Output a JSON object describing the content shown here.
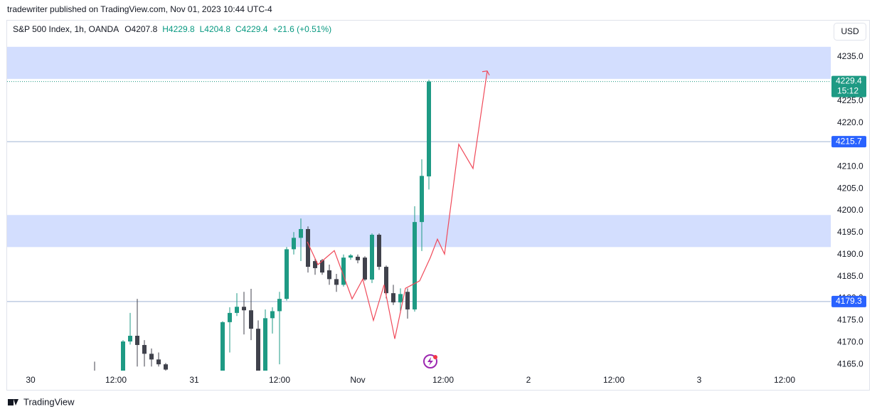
{
  "header": "tradewriter published on TradingView.com, Nov 01, 2023 10:44 UTC-4",
  "footer": "TradingView",
  "currency": "USD",
  "chart_data": {
    "type": "candlestick",
    "title": "S&P 500 Index, 1h, OANDA",
    "ohlc": [
      "O4207.8",
      "H4229.8",
      "L4204.8",
      "C4229.4",
      "+21.6 (+0.51%)"
    ],
    "up_color": "#1e9a84",
    "down_color": "#40424c",
    "x": [
      9,
      13,
      14,
      15,
      16,
      17,
      18,
      19,
      27,
      28,
      29,
      30,
      31,
      32,
      33,
      34,
      35,
      36,
      37,
      38,
      39,
      40,
      41,
      42,
      43,
      44,
      45,
      46,
      47,
      48,
      49,
      50,
      51,
      52,
      53,
      54,
      55,
      56
    ],
    "open": [
      4162,
      4163,
      4170.2,
      4171.5,
      4169.4,
      4167.4,
      4166.1,
      4165.0,
      4163,
      4174.6,
      4176.7,
      4178.1,
      4177.3,
      4173.1,
      4162,
      4175.5,
      4177.1,
      4179.9,
      4191.2,
      4193.8,
      4195.8,
      4188.5,
      4188.7,
      4186.4,
      4184.4,
      4183.1,
      4189.3,
      4189.5,
      4189.3,
      4184.3,
      4194.5,
      4187.2,
      4181.2,
      4179.1,
      4181.5,
      4177.5,
      4197.4,
      4207.8
    ],
    "high": [
      4165.6,
      4170.5,
      4176.7,
      4179.9,
      4170.5,
      4168.6,
      4167.7,
      4165.3,
      4174.8,
      4178.0,
      4181.2,
      4181.5,
      4182.2,
      4175.0,
      4177.5,
      4178.0,
      4181.5,
      4191.7,
      4195.1,
      4198.2,
      4196.4,
      4189.0,
      4189.0,
      4187.7,
      4185.6,
      4190.0,
      4190.1,
      4190.0,
      4189.6,
      4194.8,
      4194.8,
      4187.5,
      4183.1,
      4182.3,
      4182.3,
      4201.0,
      4211.7,
      4229.8
    ],
    "low": [
      4160,
      4162,
      4169.5,
      4164.5,
      4164.5,
      4164.5,
      4164.5,
      4163,
      4162,
      4167.7,
      4176.0,
      4171.8,
      4170.5,
      4161,
      4161,
      4172,
      4165,
      4179.5,
      4190,
      4188.5,
      4185.9,
      4185.4,
      4185.4,
      4183.1,
      4181.5,
      4182.7,
      4188.8,
      4188.0,
      4184.0,
      4183.5,
      4186.5,
      4180.0,
      4178.5,
      4176.7,
      4175.4,
      4177.0,
      4190.8,
      4204.8
    ],
    "close": [
      4161,
      4170.2,
      4171.5,
      4169.4,
      4167.4,
      4166.1,
      4165.0,
      4163.8,
      4174.6,
      4176.7,
      4178.1,
      4177.3,
      4173.1,
      4162,
      4175.5,
      4177.1,
      4179.9,
      4191.2,
      4193.8,
      4195.8,
      4187.2,
      4186.9,
      4185.9,
      4184.4,
      4183.1,
      4189.3,
      4189.8,
      4188.7,
      4184.3,
      4194.5,
      4187.2,
      4181.2,
      4179.1,
      4181.0,
      4177.5,
      4197.4,
      4207.9,
      4229.4
    ],
    "xlim": [
      -3.3,
      112.5
    ],
    "xticks": [
      {
        "value": 0,
        "label": "30"
      },
      {
        "value": 12,
        "label": "12:00"
      },
      {
        "value": 23,
        "label": "31"
      },
      {
        "value": 35,
        "label": "12:00"
      },
      {
        "value": 46,
        "label": "Nov"
      },
      {
        "value": 58,
        "label": "12:00"
      },
      {
        "value": 70,
        "label": "2"
      },
      {
        "value": 82,
        "label": "12:00"
      },
      {
        "value": 94,
        "label": "3"
      },
      {
        "value": 106,
        "label": "12:00"
      }
    ],
    "ylim": [
      4163.4,
      4243.1
    ],
    "yticks": [
      {
        "value": 4165,
        "label": "4165.0"
      },
      {
        "value": 4170,
        "label": "4170.0"
      },
      {
        "value": 4175,
        "label": "4175.0"
      },
      {
        "value": 4180,
        "label": "4180.0"
      },
      {
        "value": 4185,
        "label": "4185.0"
      },
      {
        "value": 4190,
        "label": "4190.0"
      },
      {
        "value": 4195,
        "label": "4195.0"
      },
      {
        "value": 4200,
        "label": "4200.0"
      },
      {
        "value": 4205,
        "label": "4205.0"
      },
      {
        "value": 4210,
        "label": "4210.0"
      },
      {
        "value": 4220,
        "label": "4220.0"
      },
      {
        "value": 4225,
        "label": "4225.0"
      },
      {
        "value": 4235,
        "label": "4235.0"
      }
    ],
    "zones": [
      [
        4230.0,
        4237.3
      ],
      [
        4191.7,
        4199.0
      ]
    ],
    "zone_color": "#d3defe",
    "levels": [
      4215.7,
      4179.3
    ],
    "level_color": "#9fb3d3",
    "last_price": 4229.4,
    "countdown": "15:12",
    "drawing": {
      "color": "#f04a5a",
      "x": [
        38.9,
        40.4,
        42.7,
        45.2,
        46.7,
        48.2,
        49.7,
        51.2,
        52.7,
        54.7,
        56.2,
        57.2,
        58.2,
        60.2,
        62.2,
        64.2
      ],
      "y": [
        4192.9,
        4187.7,
        4190.9,
        4179.9,
        4184.4,
        4175.0,
        4183.1,
        4170.8,
        4182.3,
        4184.0,
        4189.3,
        4193.5,
        4190.1,
        4215.1,
        4209.6,
        4231.8
      ]
    }
  }
}
